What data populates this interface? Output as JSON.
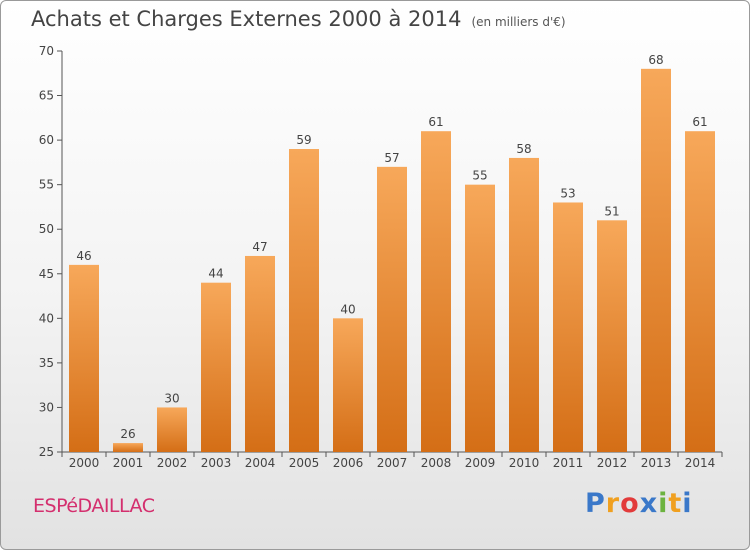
{
  "header": {
    "title": "Achats et Charges Externes 2000 à 2014",
    "unit": "(en milliers d'€)"
  },
  "footer": {
    "commune": "ESPéDAILLAC",
    "logo": {
      "letters": [
        "P",
        "r",
        "o",
        "x",
        "i",
        "t",
        "i"
      ],
      "colors": [
        "#3a78c9",
        "#f0a020",
        "#e23b3b",
        "#3a78c9",
        "#6cb33f",
        "#f0a020",
        "#3a78c9"
      ]
    }
  },
  "colors": {
    "bar_light": "#f7a85a",
    "bar_dark": "#d46e16",
    "axis": "#555555",
    "grid": "#cccccc"
  },
  "chart_data": {
    "type": "bar",
    "title": "Achats et Charges Externes 2000 à 2014",
    "categories": [
      "2000",
      "2001",
      "2002",
      "2003",
      "2004",
      "2005",
      "2006",
      "2007",
      "2008",
      "2009",
      "2010",
      "2011",
      "2012",
      "2013",
      "2014"
    ],
    "values": [
      46,
      26,
      30,
      44,
      47,
      59,
      40,
      57,
      61,
      55,
      58,
      53,
      51,
      68,
      61
    ],
    "ylim": [
      25,
      70
    ],
    "yticks": [
      25,
      30,
      35,
      40,
      45,
      50,
      55,
      60,
      65,
      70
    ],
    "xlabel": "",
    "ylabel": "",
    "grid": false
  }
}
